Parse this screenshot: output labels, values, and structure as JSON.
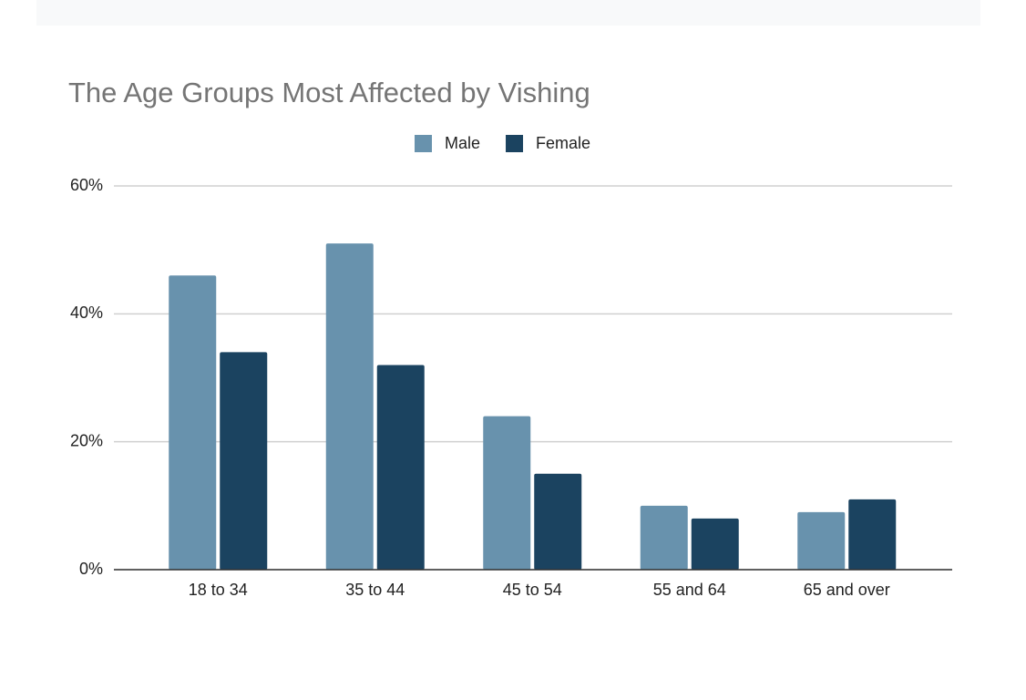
{
  "chart_data": {
    "type": "bar",
    "title": "The Age Groups Most Affected by Vishing",
    "categories": [
      "18 to 34",
      "35 to 44",
      "45 to 54",
      "55 and 64",
      "65 and over"
    ],
    "series": [
      {
        "name": "Male",
        "color": "#6892ad",
        "values": [
          46,
          51,
          24,
          10,
          9
        ]
      },
      {
        "name": "Female",
        "color": "#1b4360",
        "values": [
          34,
          32,
          15,
          8,
          11
        ]
      }
    ],
    "ylim": [
      0,
      60
    ],
    "yticks": [
      {
        "value": 0,
        "label": "0%"
      },
      {
        "value": 20,
        "label": "20%"
      },
      {
        "value": 40,
        "label": "40%"
      },
      {
        "value": 60,
        "label": "60%"
      }
    ],
    "grid": true,
    "legend": "top"
  }
}
